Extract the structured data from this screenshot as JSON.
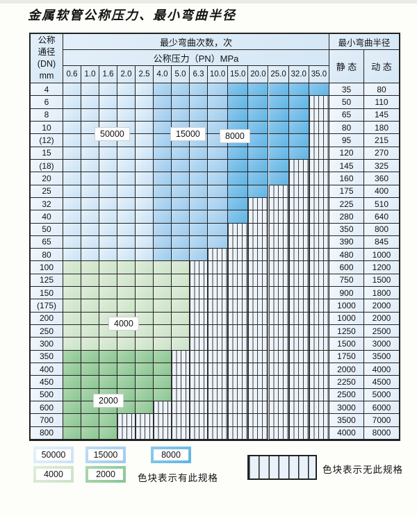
{
  "page": {
    "title": "金属软管公称压力、最小弯曲半径"
  },
  "table": {
    "header": {
      "dn_lines": [
        "公称",
        "通径",
        "(DN)",
        "mm"
      ],
      "bend_cycles": "最少弯曲次数，次",
      "pressure": "公称压力（PN）MPa",
      "pressure_values": [
        "0.6",
        "1.0",
        "1.6",
        "2.0",
        "2.5",
        "4.0",
        "5.0",
        "6.3",
        "10.0",
        "15.0",
        "20.0",
        "25.0",
        "32.0",
        "35.0"
      ],
      "radius": "最小弯曲半径",
      "static_label": "静 态",
      "dynamic_label": "动 态"
    },
    "overlay_labels": [
      "50000",
      "15000",
      "8000",
      "4000",
      "2000"
    ],
    "rows": [
      {
        "dn": "4",
        "spans": [
          [
            "b1",
            5
          ],
          [
            "b2",
            4
          ],
          [
            "b3",
            5
          ]
        ],
        "static": "35",
        "dynamic": "80"
      },
      {
        "dn": "6",
        "spans": [
          [
            "b1",
            5
          ],
          [
            "b2",
            4
          ],
          [
            "b3",
            4
          ],
          [
            "x",
            1
          ]
        ],
        "static": "50",
        "dynamic": "110"
      },
      {
        "dn": "8",
        "spans": [
          [
            "b1",
            5
          ],
          [
            "b2",
            4
          ],
          [
            "b3",
            4
          ],
          [
            "x",
            1
          ]
        ],
        "static": "65",
        "dynamic": "145"
      },
      {
        "dn": "10",
        "spans": [
          [
            "b1",
            5
          ],
          [
            "b2",
            4
          ],
          [
            "b3",
            4
          ],
          [
            "x",
            1
          ]
        ],
        "static": "80",
        "dynamic": "180"
      },
      {
        "dn": "(12)",
        "spans": [
          [
            "b1",
            5
          ],
          [
            "b2",
            4
          ],
          [
            "b3",
            4
          ],
          [
            "x",
            1
          ]
        ],
        "static": "95",
        "dynamic": "215"
      },
      {
        "dn": "15",
        "spans": [
          [
            "b1",
            5
          ],
          [
            "b2",
            4
          ],
          [
            "b3",
            4
          ],
          [
            "x",
            1
          ]
        ],
        "static": "120",
        "dynamic": "270"
      },
      {
        "dn": "(18)",
        "spans": [
          [
            "b1",
            5
          ],
          [
            "b2",
            4
          ],
          [
            "b3",
            3
          ],
          [
            "x",
            2
          ]
        ],
        "static": "145",
        "dynamic": "325"
      },
      {
        "dn": "20",
        "spans": [
          [
            "b1",
            5
          ],
          [
            "b2",
            4
          ],
          [
            "b3",
            3
          ],
          [
            "x",
            2
          ]
        ],
        "static": "160",
        "dynamic": "360"
      },
      {
        "dn": "25",
        "spans": [
          [
            "b1",
            5
          ],
          [
            "b2",
            4
          ],
          [
            "b3",
            2
          ],
          [
            "x",
            3
          ]
        ],
        "static": "175",
        "dynamic": "400"
      },
      {
        "dn": "32",
        "spans": [
          [
            "b1",
            5
          ],
          [
            "b2",
            4
          ],
          [
            "b3",
            1
          ],
          [
            "x",
            4
          ]
        ],
        "static": "225",
        "dynamic": "510"
      },
      {
        "dn": "40",
        "spans": [
          [
            "b1",
            5
          ],
          [
            "b2",
            4
          ],
          [
            "b3",
            1
          ],
          [
            "x",
            4
          ]
        ],
        "static": "280",
        "dynamic": "640"
      },
      {
        "dn": "50",
        "spans": [
          [
            "b1",
            5
          ],
          [
            "b2",
            4
          ],
          [
            "x",
            5
          ]
        ],
        "static": "350",
        "dynamic": "800"
      },
      {
        "dn": "65",
        "spans": [
          [
            "b1",
            5
          ],
          [
            "b2",
            4
          ],
          [
            "x",
            5
          ]
        ],
        "static": "390",
        "dynamic": "845"
      },
      {
        "dn": "80",
        "spans": [
          [
            "b1",
            5
          ],
          [
            "b2",
            3
          ],
          [
            "x",
            6
          ]
        ],
        "static": "480",
        "dynamic": "1000"
      },
      {
        "dn": "100",
        "spans": [
          [
            "g1",
            7
          ],
          [
            "x",
            7
          ]
        ],
        "static": "600",
        "dynamic": "1200"
      },
      {
        "dn": "125",
        "spans": [
          [
            "g1",
            7
          ],
          [
            "x",
            7
          ]
        ],
        "static": "750",
        "dynamic": "1500"
      },
      {
        "dn": "150",
        "spans": [
          [
            "g1",
            7
          ],
          [
            "x",
            7
          ]
        ],
        "static": "900",
        "dynamic": "1800"
      },
      {
        "dn": "(175)",
        "spans": [
          [
            "g1",
            7
          ],
          [
            "x",
            7
          ]
        ],
        "static": "1000",
        "dynamic": "2000"
      },
      {
        "dn": "200",
        "spans": [
          [
            "g1",
            7
          ],
          [
            "x",
            7
          ]
        ],
        "static": "1000",
        "dynamic": "2000"
      },
      {
        "dn": "250",
        "spans": [
          [
            "g1",
            7
          ],
          [
            "x",
            7
          ]
        ],
        "static": "1250",
        "dynamic": "2500"
      },
      {
        "dn": "300",
        "spans": [
          [
            "g1",
            7
          ],
          [
            "x",
            7
          ]
        ],
        "static": "1500",
        "dynamic": "3000"
      },
      {
        "dn": "350",
        "spans": [
          [
            "g2",
            6
          ],
          [
            "x",
            8
          ]
        ],
        "static": "1750",
        "dynamic": "3500"
      },
      {
        "dn": "400",
        "spans": [
          [
            "g2",
            6
          ],
          [
            "x",
            8
          ]
        ],
        "static": "2000",
        "dynamic": "4000"
      },
      {
        "dn": "450",
        "spans": [
          [
            "g2",
            6
          ],
          [
            "x",
            8
          ]
        ],
        "static": "2250",
        "dynamic": "4500"
      },
      {
        "dn": "500",
        "spans": [
          [
            "g2",
            6
          ],
          [
            "x",
            8
          ]
        ],
        "static": "2500",
        "dynamic": "5000"
      },
      {
        "dn": "600",
        "spans": [
          [
            "g2",
            5
          ],
          [
            "x",
            9
          ]
        ],
        "static": "3000",
        "dynamic": "6000"
      },
      {
        "dn": "700",
        "spans": [
          [
            "g2",
            3
          ],
          [
            "x",
            11
          ]
        ],
        "static": "3500",
        "dynamic": "7000"
      },
      {
        "dn": "800",
        "spans": [
          [
            "g2",
            3
          ],
          [
            "x",
            11
          ]
        ],
        "static": "4000",
        "dynamic": "8000"
      }
    ]
  },
  "legend": {
    "items": [
      {
        "label": "50000",
        "key": "b1"
      },
      {
        "label": "15000",
        "key": "b2"
      },
      {
        "label": "8000",
        "key": "b3"
      },
      {
        "label": "4000",
        "key": "g1"
      },
      {
        "label": "2000",
        "key": "g2"
      }
    ],
    "has_spec": "色块表示有此规格",
    "no_spec": "色块表示无此规格"
  },
  "colors": {
    "b1": [
      "#e7f2fb",
      "#c9e2f5"
    ],
    "b2": [
      "#c0ddf3",
      "#9ccbee"
    ],
    "b3": [
      "#8fc9ee",
      "#5fb4e4"
    ],
    "g1": [
      "#e0edda",
      "#cbe3c8"
    ],
    "g2": [
      "#aed7ae",
      "#8ac694"
    ],
    "stripe_bg": "#edf3fa",
    "border": "#222222"
  }
}
